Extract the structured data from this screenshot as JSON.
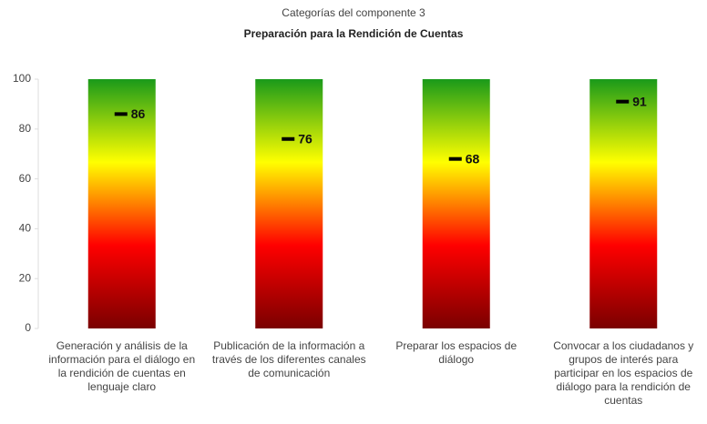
{
  "chart_data": {
    "type": "gauge_bar",
    "title": "Categorías del componente 3",
    "subtitle": "Preparación para la Rendición de Cuentas",
    "categories": [
      "Generación y análisis de la información para el diálogo en la rendición de cuentas en lenguaje claro",
      "Publicación de la información a través de los diferentes canales de comunicación",
      "Preparar los espacios de diálogo",
      "Convocar a los ciudadanos y grupos de interés para participar en los espacios de diálogo para la rendición de cuentas"
    ],
    "values": [
      86,
      76,
      68,
      91
    ],
    "bar_gradient": [
      "#7a0000",
      "#ff0000",
      "#ffff00",
      "#1a9a1a"
    ],
    "marker_color": "#000000",
    "ylim": [
      0,
      100
    ],
    "yticks": [
      0,
      20,
      40,
      60,
      80,
      100
    ],
    "grid": false
  }
}
